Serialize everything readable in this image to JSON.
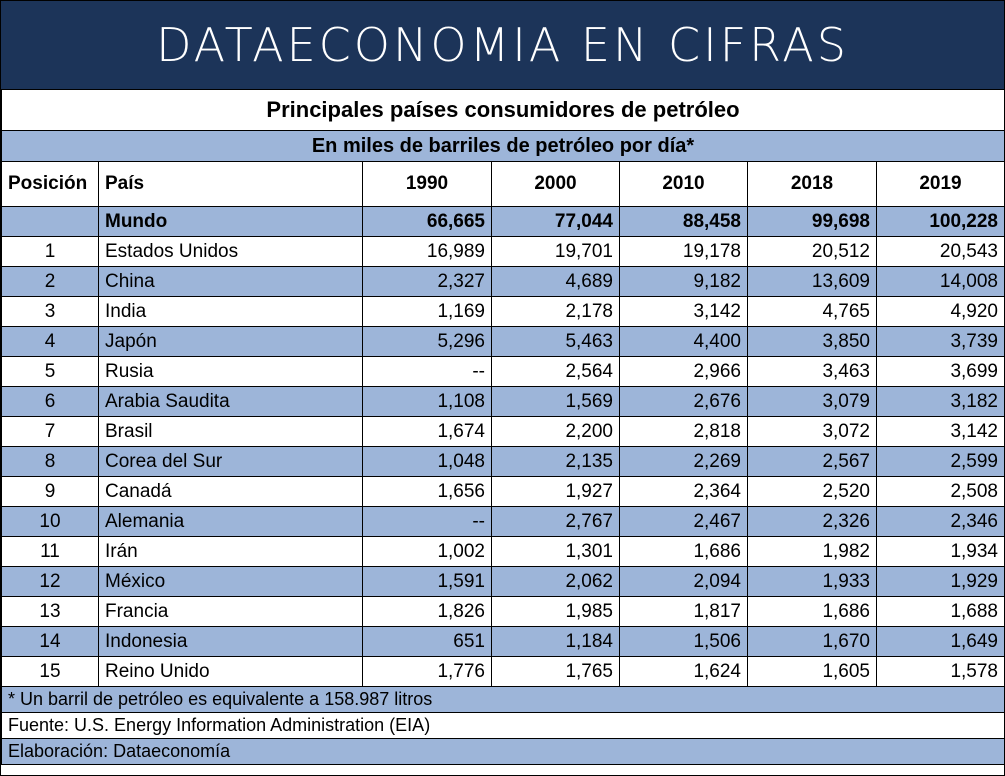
{
  "banner": "DATAECONOMIA EN CIFRAS",
  "title": "Principales países consumidores de petróleo",
  "subtitle": "En miles de barriles de petróleo por día*",
  "headers": [
    "Posición",
    "País",
    "1990",
    "2000",
    "2010",
    "2018",
    "2019"
  ],
  "world": {
    "pos": "",
    "country": "Mundo",
    "values": [
      "66,665",
      "77,044",
      "88,458",
      "99,698",
      "100,228"
    ]
  },
  "rows": [
    {
      "pos": "1",
      "country": "Estados Unidos",
      "values": [
        "16,989",
        "19,701",
        "19,178",
        "20,512",
        "20,543"
      ]
    },
    {
      "pos": "2",
      "country": "China",
      "values": [
        "2,327",
        "4,689",
        "9,182",
        "13,609",
        "14,008"
      ]
    },
    {
      "pos": "3",
      "country": "India",
      "values": [
        "1,169",
        "2,178",
        "3,142",
        "4,765",
        "4,920"
      ]
    },
    {
      "pos": "4",
      "country": "Japón",
      "values": [
        "5,296",
        "5,463",
        "4,400",
        "3,850",
        "3,739"
      ]
    },
    {
      "pos": "5",
      "country": "Rusia",
      "values": [
        "--",
        "2,564",
        "2,966",
        "3,463",
        "3,699"
      ]
    },
    {
      "pos": "6",
      "country": "Arabia Saudita",
      "values": [
        "1,108",
        "1,569",
        "2,676",
        "3,079",
        "3,182"
      ]
    },
    {
      "pos": "7",
      "country": "Brasil",
      "values": [
        "1,674",
        "2,200",
        "2,818",
        "3,072",
        "3,142"
      ]
    },
    {
      "pos": "8",
      "country": "Corea del Sur",
      "values": [
        "1,048",
        "2,135",
        "2,269",
        "2,567",
        "2,599"
      ]
    },
    {
      "pos": "9",
      "country": "Canadá",
      "values": [
        "1,656",
        "1,927",
        "2,364",
        "2,520",
        "2,508"
      ]
    },
    {
      "pos": "10",
      "country": "Alemania",
      "values": [
        "--",
        "2,767",
        "2,467",
        "2,326",
        "2,346"
      ]
    },
    {
      "pos": "11",
      "country": "Irán",
      "values": [
        "1,002",
        "1,301",
        "1,686",
        "1,982",
        "1,934"
      ]
    },
    {
      "pos": "12",
      "country": "México",
      "values": [
        "1,591",
        "2,062",
        "2,094",
        "1,933",
        "1,929"
      ]
    },
    {
      "pos": "13",
      "country": "Francia",
      "values": [
        "1,826",
        "1,985",
        "1,817",
        "1,686",
        "1,688"
      ]
    },
    {
      "pos": "14",
      "country": "Indonesia",
      "values": [
        "651",
        "1,184",
        "1,506",
        "1,670",
        "1,649"
      ]
    },
    {
      "pos": "15",
      "country": "Reino Unido",
      "values": [
        "1,776",
        "1,765",
        "1,624",
        "1,605",
        "1,578"
      ]
    }
  ],
  "footnotes": [
    "* Un barril de petróleo es equivalente a 158.987 litros",
    "Fuente: U.S. Energy Information Administration (EIA)",
    "Elaboración: Dataeconomía"
  ],
  "colors": {
    "banner_bg": "#1c3459",
    "band": "#9db5d9"
  }
}
